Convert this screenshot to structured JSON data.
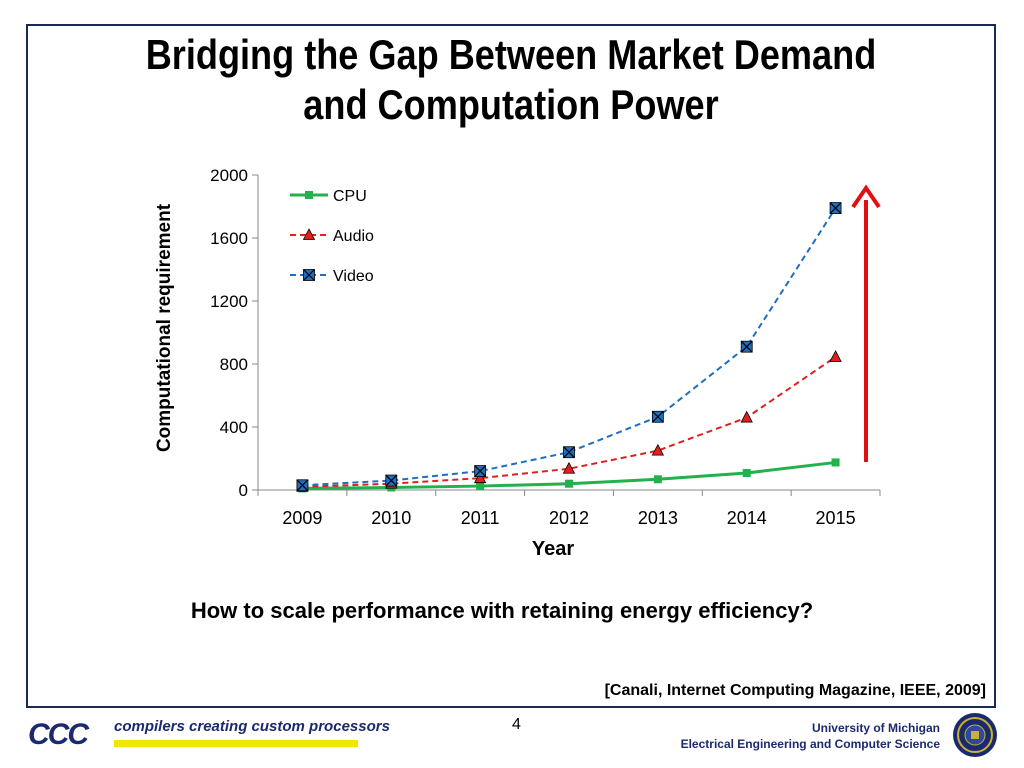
{
  "slide": {
    "title_line1": "Bridging the Gap Between Market Demand",
    "title_line2": "and Computation Power",
    "question": "How to scale performance with retaining energy efficiency?",
    "citation": "[Canali, Internet Computing Magazine, IEEE, 2009]",
    "page_number": "4"
  },
  "footer": {
    "logo_text": "CCC",
    "tagline": "compilers creating custom processors",
    "university": "University of Michigan",
    "department": "Electrical Engineering and Computer Science",
    "logo_color": "#1b2a6e",
    "bar_color": "#f3e600"
  },
  "chart_data": {
    "type": "line",
    "x": [
      "2009",
      "2010",
      "2011",
      "2012",
      "2013",
      "2014",
      "2015"
    ],
    "series": [
      {
        "name": "CPU",
        "values": [
          10,
          16,
          25,
          40,
          68,
          108,
          175
        ],
        "color": "#22b14c",
        "dash": "solid",
        "marker": "square"
      },
      {
        "name": "Audio",
        "values": [
          20,
          40,
          75,
          135,
          250,
          460,
          845
        ],
        "color": "#e02020",
        "dash": "dashed",
        "marker": "triangle"
      },
      {
        "name": "Video",
        "values": [
          30,
          60,
          120,
          240,
          465,
          910,
          1790
        ],
        "color": "#1f6fc0",
        "dash": "dashed",
        "marker": "x-square"
      }
    ],
    "xlabel": "Year",
    "ylabel": "Computational requirement",
    "ylim": [
      0,
      2000
    ],
    "yticks": [
      "0",
      "400",
      "800",
      "1200",
      "1600",
      "2000"
    ],
    "legend_position": "top-left",
    "grid": false,
    "annotation_arrow_color": "#e01010"
  }
}
